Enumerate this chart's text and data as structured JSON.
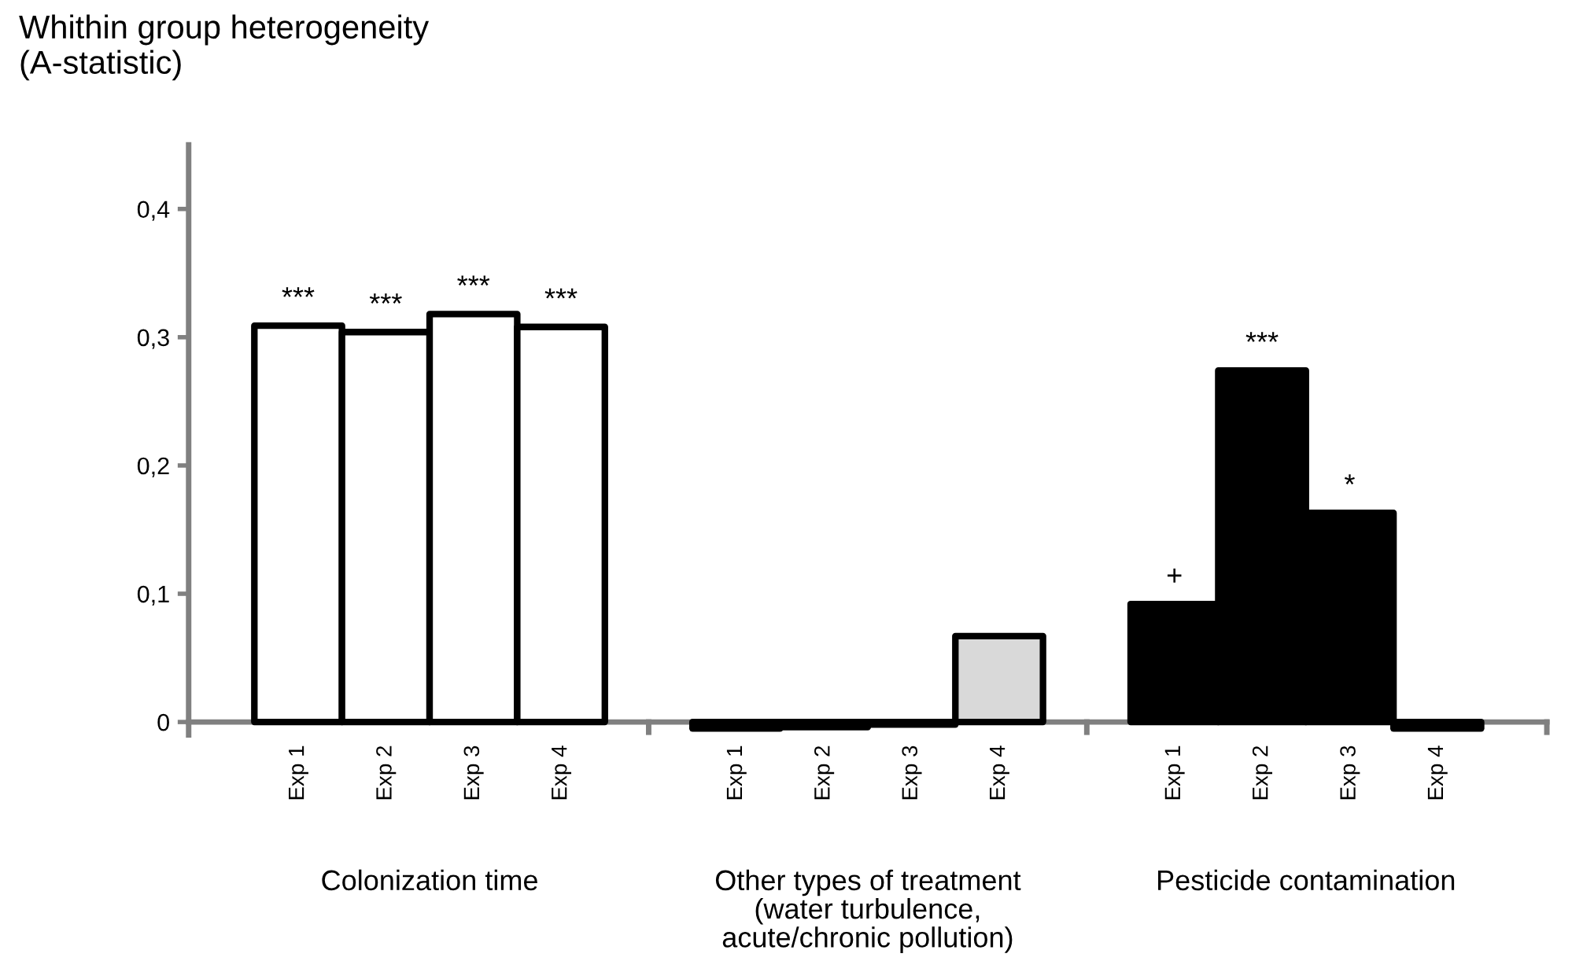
{
  "chart_data": {
    "type": "bar",
    "ylabel": "Whithin group heterogeneity\n(A-statistic)",
    "categories": [
      "Exp 1",
      "Exp 2",
      "Exp 3",
      "Exp 4",
      null,
      "Exp 1",
      "Exp 2",
      "Exp 3",
      "Exp 4",
      null,
      "Exp 1",
      "Exp 2",
      "Exp 3",
      "Exp 4"
    ],
    "values": [
      0.309,
      0.304,
      0.318,
      0.308,
      null,
      -0.005,
      -0.004,
      -0.002,
      0.067,
      null,
      0.092,
      0.274,
      0.163,
      -0.005
    ],
    "colors": [
      "#ffffff",
      "#ffffff",
      "#ffffff",
      "#ffffff",
      null,
      "#d9d9d9",
      "#d9d9d9",
      "#d9d9d9",
      "#d9d9d9",
      null,
      "#000000",
      "#000000",
      "#000000",
      "#000000"
    ],
    "value_labels": [
      "***",
      "***",
      "***",
      "***",
      null,
      null,
      null,
      null,
      null,
      null,
      "+",
      "***",
      "*",
      null
    ],
    "annotations": [
      "Colonization time",
      "Other types of treatment\n(water turbulence,\nacute/chronic pollution)",
      "Pesticide contamination"
    ],
    "ylim": [
      -0.01,
      0.45
    ],
    "yticks": [
      0,
      {
        "value": 0.1,
        "label": "0,1"
      },
      {
        "value": 0.2,
        "label": "0,2"
      },
      {
        "value": 0.3,
        "label": "0,3"
      },
      {
        "value": 0.4,
        "label": "0,4"
      }
    ],
    "grid": false,
    "legend": false
  }
}
